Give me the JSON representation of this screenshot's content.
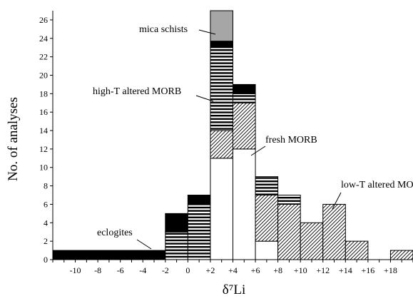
{
  "chart_data": {
    "type": "bar",
    "stacked": true,
    "xlabel": "δ⁷Li",
    "ylabel": "No. of analyses",
    "ylim": [
      0,
      27
    ],
    "y_ticks": [
      0,
      2,
      4,
      6,
      8,
      10,
      12,
      14,
      16,
      18,
      20,
      22,
      24,
      26
    ],
    "x_domain": [
      -12,
      20
    ],
    "x_ticks": [
      {
        "value": -10,
        "label": "-10"
      },
      {
        "value": -8,
        "label": "-8"
      },
      {
        "value": -6,
        "label": "-6"
      },
      {
        "value": -4,
        "label": "-4"
      },
      {
        "value": -2,
        "label": "-2"
      },
      {
        "value": 0,
        "label": "0"
      },
      {
        "value": 2,
        "label": "+2"
      },
      {
        "value": 4,
        "label": "+4"
      },
      {
        "value": 6,
        "label": "+6"
      },
      {
        "value": 8,
        "label": "+8"
      },
      {
        "value": 10,
        "label": "+10"
      },
      {
        "value": 12,
        "label": "+12"
      },
      {
        "value": 14,
        "label": "+14"
      },
      {
        "value": 16,
        "label": "+16"
      },
      {
        "value": 18,
        "label": "+18"
      }
    ],
    "bins": [
      {
        "x0": -12,
        "x1": -2,
        "fresh": 0,
        "lowT": 0,
        "highT": 0,
        "eclogite": 1,
        "mica": 0
      },
      {
        "x0": -2,
        "x1": 0,
        "fresh": 0,
        "lowT": 0,
        "highT": 3,
        "eclogite": 2,
        "mica": 0
      },
      {
        "x0": 0,
        "x1": 2,
        "fresh": 0,
        "lowT": 0,
        "highT": 6,
        "eclogite": 1,
        "mica": 0
      },
      {
        "x0": 2,
        "x1": 4,
        "fresh": 11,
        "lowT": 3,
        "highT": 9,
        "eclogite": 0.7,
        "mica": 3.3
      },
      {
        "x0": 4,
        "x1": 6,
        "fresh": 12,
        "lowT": 5,
        "highT": 1,
        "eclogite": 1,
        "mica": 0
      },
      {
        "x0": 6,
        "x1": 8,
        "fresh": 2,
        "lowT": 5,
        "highT": 2,
        "eclogite": 0,
        "mica": 0
      },
      {
        "x0": 8,
        "x1": 10,
        "fresh": 0,
        "lowT": 6,
        "highT": 1,
        "eclogite": 0,
        "mica": 0
      },
      {
        "x0": 10,
        "x1": 12,
        "fresh": 0,
        "lowT": 4,
        "highT": 0,
        "eclogite": 0,
        "mica": 0
      },
      {
        "x0": 12,
        "x1": 14,
        "fresh": 0,
        "lowT": 6,
        "highT": 0,
        "eclogite": 0,
        "mica": 0
      },
      {
        "x0": 14,
        "x1": 16,
        "fresh": 0,
        "lowT": 2,
        "highT": 0,
        "eclogite": 0,
        "mica": 0
      },
      {
        "x0": 18,
        "x1": 20,
        "fresh": 0,
        "lowT": 1,
        "highT": 0,
        "eclogite": 0,
        "mica": 0
      }
    ],
    "series": [
      {
        "key": "fresh",
        "name": "fresh MORB",
        "fill": "white"
      },
      {
        "key": "lowT",
        "name": "low-T altered MORB",
        "fill": "diagonal-hatch"
      },
      {
        "key": "highT",
        "name": "high-T altered MORB",
        "fill": "horizontal-stripes"
      },
      {
        "key": "eclogite",
        "name": "eclogites",
        "fill": "black"
      },
      {
        "key": "mica",
        "name": "mica schists",
        "fill": "gray"
      }
    ],
    "annotations": [
      {
        "text": "mica schists",
        "series": "mica"
      },
      {
        "text": "high-T altered MORB",
        "series": "highT"
      },
      {
        "text": "fresh MORB",
        "series": "fresh"
      },
      {
        "text": "low-T altered MORB",
        "series": "lowT"
      },
      {
        "text": "eclogites",
        "series": "eclogite"
      }
    ],
    "colors": {
      "gray": "#a6a6a6",
      "black": "#000000"
    }
  }
}
